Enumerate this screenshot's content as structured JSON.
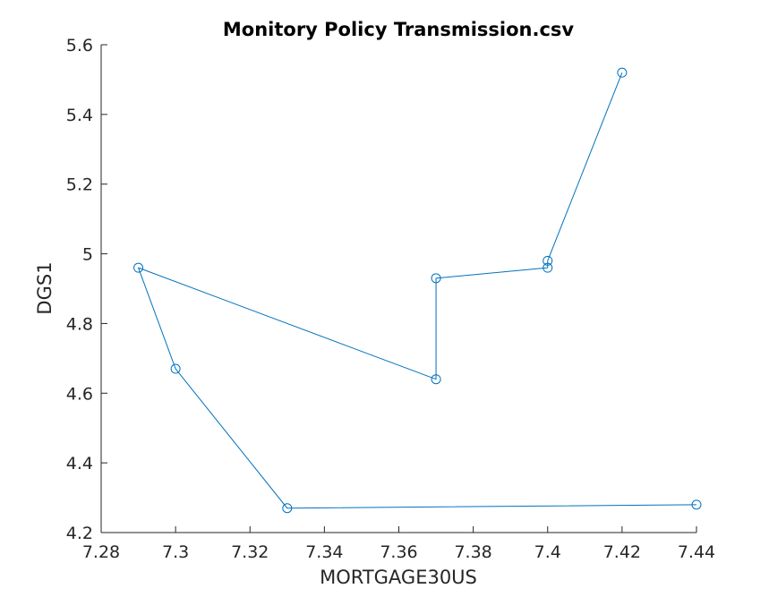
{
  "figure": {
    "background": "#ffffff"
  },
  "chart_data": {
    "type": "line",
    "title": "Monitory Policy Transmission.csv",
    "xlabel": "MORTGAGE30US",
    "ylabel": "DGS1",
    "xlim": [
      7.28,
      7.44
    ],
    "ylim": [
      4.2,
      5.6
    ],
    "xticks": [
      7.28,
      7.3,
      7.32,
      7.34,
      7.36,
      7.38,
      7.4,
      7.42,
      7.44
    ],
    "xtick_labels": [
      "7.28",
      "7.3",
      "7.32",
      "7.34",
      "7.36",
      "7.38",
      "7.4",
      "7.42",
      "7.44"
    ],
    "yticks": [
      4.2,
      4.4,
      4.6,
      4.8,
      5.0,
      5.2,
      5.4,
      5.6
    ],
    "ytick_labels": [
      "4.2",
      "4.4",
      "4.6",
      "4.8",
      "5",
      "5.2",
      "5.4",
      "5.6"
    ],
    "grid": false,
    "marker": "circle",
    "series": [
      {
        "color": "#0072bd",
        "x": [
          7.42,
          7.4,
          7.4,
          7.37,
          7.37,
          7.29,
          7.3,
          7.33,
          7.44
        ],
        "y": [
          5.52,
          4.98,
          4.96,
          4.93,
          4.64,
          4.96,
          4.67,
          4.27,
          4.28
        ]
      }
    ]
  }
}
